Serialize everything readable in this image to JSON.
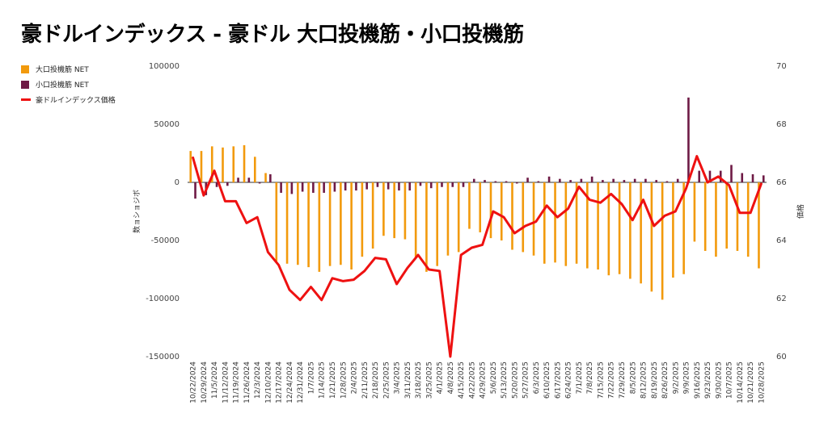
{
  "page": {
    "title": "豪ドルインデックス - 豪ドル 大口投機筋・小口投機筋"
  },
  "colors": {
    "large": "#f29a0c",
    "small": "#6e1a45",
    "line": "#ee1111"
  },
  "chart_data": {
    "type": "bar",
    "title": "豪ドルインデックス - 豪ドル 大口投機筋・小口投機筋",
    "ylabel": "数ョショジボ",
    "y2label": "価格",
    "ylim": [
      -150000,
      100000
    ],
    "y2lim": [
      60,
      70
    ],
    "yticks": [
      "100000",
      "50000",
      "0",
      "-50000",
      "-100000",
      "-150000"
    ],
    "y2ticks": [
      "70",
      "68",
      "66",
      "64",
      "62",
      "60"
    ],
    "legend_position": "top-left",
    "grid": false,
    "categories": [
      "10/22/2024",
      "10/29/2024",
      "11/5/2024",
      "11/12/2024",
      "11/19/2024",
      "11/26/2024",
      "12/3/2024",
      "12/10/2024",
      "12/17/2024",
      "12/24/2024",
      "12/31/2024",
      "1/7/2025",
      "1/14/2025",
      "1/21/2025",
      "1/28/2025",
      "2/4/2025",
      "2/11/2025",
      "2/18/2025",
      "2/25/2025",
      "3/4/2025",
      "3/11/2025",
      "3/18/2025",
      "3/25/2025",
      "4/1/2025",
      "4/8/2025",
      "4/15/2025",
      "4/22/2025",
      "4/29/2025",
      "5/6/2025",
      "5/13/2025",
      "5/20/2025",
      "5/27/2025",
      "6/3/2025",
      "6/10/2025",
      "6/17/2025",
      "6/24/2025",
      "7/1/2025",
      "7/8/2025",
      "7/15/2025",
      "7/22/2025",
      "7/29/2025",
      "8/5/2025",
      "8/12/2025",
      "8/19/2025",
      "8/26/2025",
      "9/2/2025",
      "9/9/2025",
      "9/16/2025",
      "9/23/2025",
      "9/30/2025",
      "10/7/2025",
      "10/14/2025",
      "10/21/2025",
      "10/28/2025"
    ],
    "series": [
      {
        "name": "大口投機筋 NET",
        "type": "bar",
        "axis": "left",
        "values": [
          27000,
          27000,
          31000,
          30000,
          31000,
          32000,
          22000,
          8000,
          -68000,
          -70000,
          -71000,
          -73000,
          -77000,
          -72000,
          -71000,
          -75000,
          -64000,
          -57000,
          -46000,
          -48000,
          -49000,
          -65000,
          -77000,
          -72000,
          -63000,
          -60000,
          -40000,
          -43000,
          -48000,
          -50000,
          -58000,
          -60000,
          -63000,
          -70000,
          -69000,
          -72000,
          -70000,
          -74000,
          -75000,
          -80000,
          -79000,
          -83000,
          -87000,
          -94000,
          -101000,
          -82000,
          -79000,
          -51000,
          -59000,
          -64000,
          -57000,
          -59000,
          -64000,
          -74000
        ]
      },
      {
        "name": "小口投機筋 NET",
        "type": "bar",
        "axis": "left",
        "values": [
          -14000,
          -11000,
          -4000,
          -3000,
          4000,
          4000,
          -1000,
          7000,
          -9000,
          -10000,
          -8000,
          -9000,
          -9000,
          -8000,
          -7000,
          -7000,
          -6000,
          -4000,
          -6000,
          -7000,
          -7000,
          -3000,
          -5000,
          -4000,
          -4000,
          -4000,
          3000,
          2000,
          1000,
          1000,
          -1000,
          4000,
          1000,
          5000,
          3000,
          2000,
          3000,
          5000,
          2000,
          3000,
          2000,
          3000,
          3000,
          2000,
          1000,
          3000,
          73000,
          10000,
          10000,
          10000,
          15000,
          8000,
          7000,
          6000
        ]
      },
      {
        "name": "豪ドルインデックス価格",
        "type": "line",
        "axis": "right",
        "values": [
          66.85,
          65.55,
          66.4,
          65.35,
          65.35,
          64.6,
          64.8,
          63.6,
          63.15,
          62.3,
          61.95,
          62.4,
          61.95,
          62.7,
          62.6,
          62.65,
          62.95,
          63.4,
          63.35,
          62.5,
          63.05,
          63.5,
          63.0,
          62.95,
          60.0,
          63.5,
          63.75,
          63.85,
          65.0,
          64.8,
          64.25,
          64.5,
          64.65,
          65.2,
          64.8,
          65.1,
          65.85,
          65.4,
          65.3,
          65.6,
          65.25,
          64.7,
          65.4,
          64.5,
          64.85,
          65.0,
          65.8,
          66.9,
          66.0,
          66.2,
          65.9,
          64.95,
          64.95,
          65.95
        ]
      }
    ]
  }
}
